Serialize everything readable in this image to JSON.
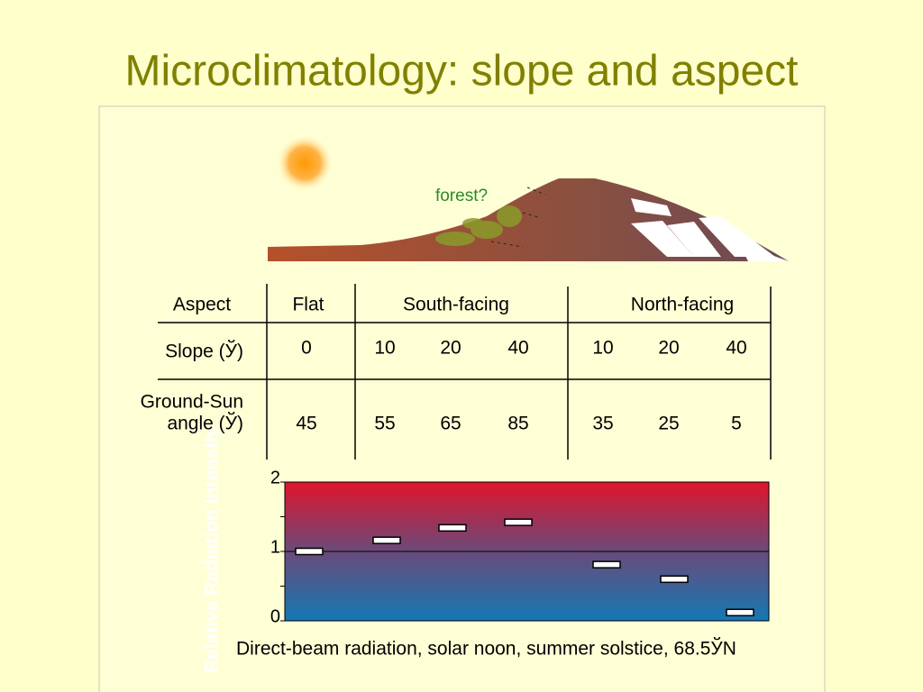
{
  "title": "Microclimatology: slope and aspect",
  "diagram": {
    "label": "forest?"
  },
  "table": {
    "header": [
      "Aspect",
      "Flat",
      "South-facing",
      "North-facing"
    ],
    "rows": [
      {
        "label": [
          "Slope (Ў)"
        ],
        "values": [
          0,
          10,
          20,
          40,
          10,
          20,
          40
        ]
      },
      {
        "label": [
          "Ground-Sun",
          "angle (Ў)"
        ],
        "values": [
          45,
          55,
          65,
          85,
          35,
          25,
          5
        ]
      }
    ]
  },
  "chart_data": {
    "type": "marker",
    "y_label": "Relative Radiation Intensity",
    "caption": "Direct-beam radiation, solar noon, summer solstice, 68.5ЎN",
    "values": [
      1.0,
      1.16,
      1.34,
      1.42,
      0.81,
      0.6,
      0.12
    ],
    "ylim": [
      0,
      2
    ],
    "yticks": [
      0,
      1,
      2
    ],
    "minor_yticks": [
      0.5,
      1.5
    ],
    "grid": true,
    "color": "#ffffff"
  }
}
